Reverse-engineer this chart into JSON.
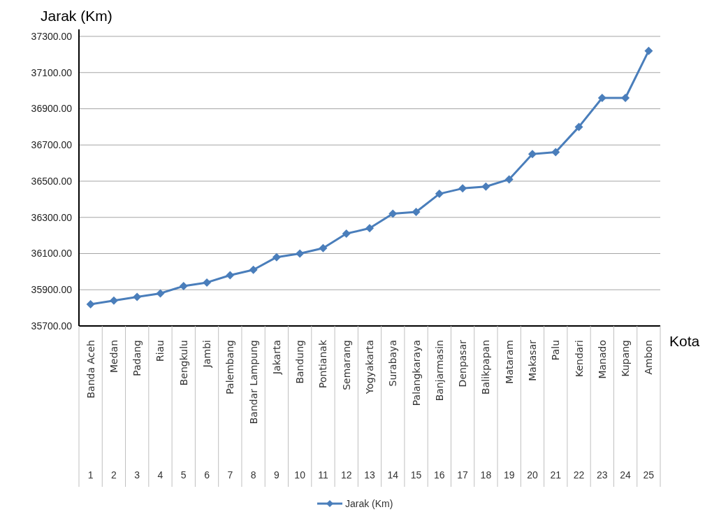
{
  "chart_data": {
    "type": "line",
    "ylabel": "Jarak (Km)",
    "xlabel": "Kota",
    "categories": [
      "Banda Aceh\n1",
      "Medan\n2",
      "Padang\n3",
      "Riau\n4",
      "Bengkulu\n5",
      "Jambi\n6",
      "Palembang\n7",
      "Bandar Lampung\n8",
      "Jakarta\n9",
      "Bandung\n10",
      "Pontianak\n11",
      "Semarang\n12",
      "Yogyakarta\n13",
      "Surabaya\n14",
      "Palangkaraya\n15",
      "Banjarmasin\n16",
      "Denpasar\n17",
      "Balikpapan\n18",
      "Mataram\n19",
      "Makasar\n20",
      "Palu\n21",
      "Kendari\n22",
      "Manado\n23",
      "Kupang\n24",
      "Ambon\n25"
    ],
    "series": [
      {
        "name": "Jarak (Km)",
        "color": "#4a7ebb",
        "values": [
          35820,
          35840,
          35860,
          35880,
          35920,
          35940,
          35980,
          36010,
          36080,
          36100,
          36130,
          36210,
          36240,
          36320,
          36330,
          36430,
          36460,
          36470,
          36510,
          36650,
          36660,
          36800,
          36960,
          36960,
          37220
        ]
      }
    ],
    "ylim": [
      35700,
      37300
    ],
    "yticks": [
      {
        "value": 35700,
        "label": "35700.00"
      },
      {
        "value": 35900,
        "label": "35900.00"
      },
      {
        "value": 36100,
        "label": "36100.00"
      },
      {
        "value": 36300,
        "label": "36300.00"
      },
      {
        "value": 36500,
        "label": "36500.00"
      },
      {
        "value": 36700,
        "label": "36700.00"
      },
      {
        "value": 36900,
        "label": "36900.00"
      },
      {
        "value": 37100,
        "label": "37100.00"
      },
      {
        "value": 37300,
        "label": "37300.00"
      }
    ],
    "grid": "y",
    "legend": "bottom",
    "marker": "diamond",
    "line_style": "solid"
  }
}
